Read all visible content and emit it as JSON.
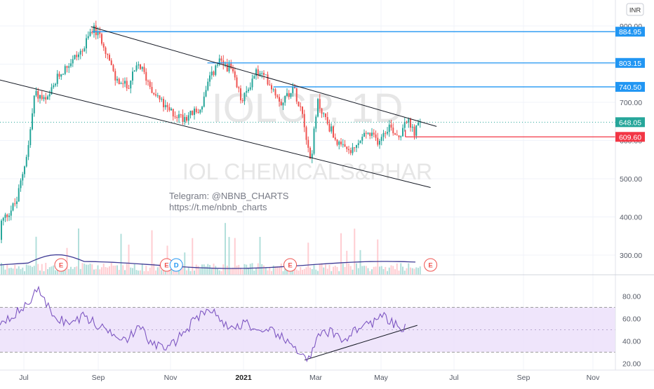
{
  "chart_data": {
    "type": "candlestick",
    "currency": "INR",
    "watermark": {
      "ticker": "IOLCP, 1D",
      "name": "IOL CHEMICALS&PHAR"
    },
    "annotation_lines": [
      "Telegram: @NBNB_CHARTS",
      "https://t.me/nbnb_charts"
    ],
    "x_ticks": [
      "Jul",
      "Sep",
      "Nov",
      "2021",
      "Mar",
      "May",
      "Jul",
      "Sep",
      "Nov"
    ],
    "price_axis": {
      "ticks": [
        "900.00",
        "800.00",
        "700.00",
        "600.00",
        "500.00",
        "400.00",
        "300.00"
      ],
      "ylim": [
        240,
        920
      ]
    },
    "rsi_axis": {
      "ticks": [
        "80.00",
        "60.00",
        "40.00",
        "20.00"
      ],
      "ylim": [
        17,
        92
      ],
      "band": [
        30,
        70
      ]
    },
    "price_levels": [
      {
        "label": "884.95",
        "value": 884.95,
        "color": "#2196f3",
        "type": "resistance"
      },
      {
        "label": "803.15",
        "value": 803.15,
        "color": "#2196f3",
        "type": "resistance"
      },
      {
        "label": "740.50",
        "value": 740.5,
        "color": "#2196f3",
        "type": "resistance"
      },
      {
        "label": "648.05",
        "value": 648.05,
        "color": "#26a69a",
        "type": "last-price"
      },
      {
        "label": "609.60",
        "value": 609.6,
        "color": "#f23645",
        "type": "support"
      }
    ],
    "trendlines": [
      {
        "name": "upper-channel",
        "from": [
          "2020-08-26",
          898
        ],
        "to": [
          "2021-06-10",
          637
        ]
      },
      {
        "name": "lower-channel",
        "from": [
          "2020-05-30",
          768
        ],
        "to": [
          "2021-06-05",
          477
        ]
      }
    ],
    "rsi_trendline": {
      "from": [
        "2021-02-20",
        23
      ],
      "to": [
        "2021-05-25",
        54
      ]
    },
    "price_path": [
      [
        "2020-06-01",
        340
      ],
      [
        "2020-06-12",
        385
      ],
      [
        "2020-06-25",
        440
      ],
      [
        "2020-07-05",
        590
      ],
      [
        "2020-07-10",
        725
      ],
      [
        "2020-07-20",
        700
      ],
      [
        "2020-07-30",
        770
      ],
      [
        "2020-08-10",
        810
      ],
      [
        "2020-08-20",
        840
      ],
      [
        "2020-08-27",
        895
      ],
      [
        "2020-09-05",
        860
      ],
      [
        "2020-09-15",
        760
      ],
      [
        "2020-09-25",
        740
      ],
      [
        "2020-10-05",
        800
      ],
      [
        "2020-10-15",
        740
      ],
      [
        "2020-10-28",
        680
      ],
      [
        "2020-11-10",
        660
      ],
      [
        "2020-11-25",
        680
      ],
      [
        "2020-12-03",
        760
      ],
      [
        "2020-12-10",
        805
      ],
      [
        "2020-12-20",
        790
      ],
      [
        "2020-12-30",
        700
      ],
      [
        "2021-01-10",
        780
      ],
      [
        "2021-01-20",
        760
      ],
      [
        "2021-02-01",
        700
      ],
      [
        "2021-02-10",
        740
      ],
      [
        "2021-02-18",
        680
      ],
      [
        "2021-02-25",
        545
      ],
      [
        "2021-03-03",
        700
      ],
      [
        "2021-03-12",
        640
      ],
      [
        "2021-03-22",
        580
      ],
      [
        "2021-04-01",
        570
      ],
      [
        "2021-04-12",
        620
      ],
      [
        "2021-04-22",
        600
      ],
      [
        "2021-05-01",
        640
      ],
      [
        "2021-05-10",
        610
      ],
      [
        "2021-05-15",
        660
      ],
      [
        "2021-05-22",
        620
      ],
      [
        "2021-05-28",
        648
      ]
    ],
    "events": [
      {
        "label": "E",
        "date": "2020-08-01",
        "color": "#ef5350"
      },
      {
        "label": "E",
        "date": "2020-10-28",
        "color": "#ef5350"
      },
      {
        "label": "D",
        "date": "2020-11-05",
        "color": "#2196f3"
      },
      {
        "label": "E",
        "date": "2021-02-08",
        "color": "#ef5350"
      },
      {
        "label": "E",
        "date": "2021-06-05",
        "color": "#ef5350"
      }
    ]
  }
}
